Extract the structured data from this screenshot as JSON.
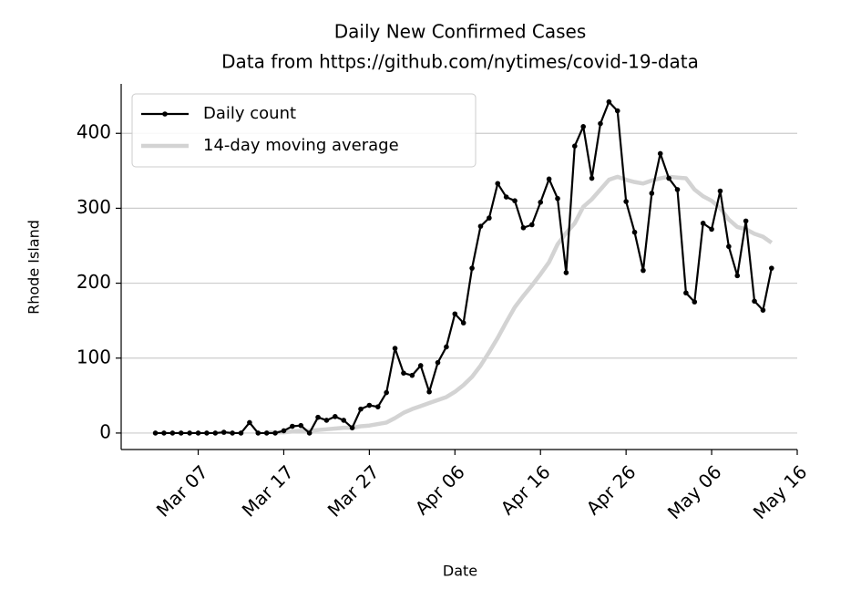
{
  "chart_data": {
    "type": "line",
    "title": "Daily New Confirmed Cases",
    "subtitle": "Data from https://github.com/nytimes/covid-19-data",
    "x_label": "Date",
    "y_label": "Rhode Island",
    "x": [
      "Mar 02",
      "Mar 03",
      "Mar 04",
      "Mar 05",
      "Mar 06",
      "Mar 07",
      "Mar 08",
      "Mar 09",
      "Mar 10",
      "Mar 11",
      "Mar 12",
      "Mar 13",
      "Mar 14",
      "Mar 15",
      "Mar 16",
      "Mar 17",
      "Mar 18",
      "Mar 19",
      "Mar 20",
      "Mar 21",
      "Mar 22",
      "Mar 23",
      "Mar 24",
      "Mar 25",
      "Mar 26",
      "Mar 27",
      "Mar 28",
      "Mar 29",
      "Mar 30",
      "Mar 31",
      "Apr 01",
      "Apr 02",
      "Apr 03",
      "Apr 04",
      "Apr 05",
      "Apr 06",
      "Apr 07",
      "Apr 08",
      "Apr 09",
      "Apr 10",
      "Apr 11",
      "Apr 12",
      "Apr 13",
      "Apr 14",
      "Apr 15",
      "Apr 16",
      "Apr 17",
      "Apr 18",
      "Apr 19",
      "Apr 20",
      "Apr 21",
      "Apr 22",
      "Apr 23",
      "Apr 24",
      "Apr 25",
      "Apr 26",
      "Apr 27",
      "Apr 28",
      "Apr 29",
      "Apr 30",
      "May 01",
      "May 02",
      "May 03",
      "May 04",
      "May 05",
      "May 06",
      "May 07",
      "May 08",
      "May 09",
      "May 10",
      "May 11",
      "May 12",
      "May 13"
    ],
    "series": [
      {
        "name": "Daily count",
        "color": "#000000",
        "markers": true,
        "line_width": 2.2,
        "values": [
          0,
          0,
          0,
          0,
          0,
          0,
          0,
          0,
          1,
          0,
          0,
          14,
          0,
          0,
          0,
          3,
          9,
          10,
          0,
          21,
          17,
          22,
          17,
          7,
          32,
          37,
          35,
          54,
          113,
          80,
          77,
          90,
          55,
          94,
          115,
          159,
          147,
          220,
          276,
          287,
          333,
          315,
          310,
          274,
          278,
          308,
          339,
          313,
          214,
          383,
          409,
          340,
          413,
          442,
          430,
          309,
          268,
          217,
          320,
          373,
          340,
          325,
          187,
          175,
          280,
          272,
          323,
          249,
          210,
          283,
          176,
          164,
          220
        ]
      },
      {
        "name": "14-day moving average",
        "color": "#d3d3d3",
        "markers": false,
        "line_width": 4.5,
        "values": [
          null,
          null,
          null,
          null,
          null,
          null,
          null,
          null,
          null,
          null,
          null,
          null,
          null,
          1,
          1,
          1,
          2,
          3,
          3,
          4,
          5,
          6,
          7,
          7,
          9,
          10,
          12,
          14,
          20,
          27,
          32,
          36,
          40,
          44,
          48,
          55,
          64,
          75,
          90,
          108,
          127,
          148,
          168,
          183,
          197,
          212,
          228,
          252,
          267,
          280,
          302,
          312,
          325,
          338,
          342,
          338,
          335,
          333,
          337,
          340,
          342,
          341,
          340,
          325,
          316,
          310,
          300,
          285,
          275,
          272,
          266,
          262,
          254
        ]
      }
    ],
    "xlim": [
      "Feb 27",
      "May 16"
    ],
    "xticks": [
      "Mar 07",
      "Mar 17",
      "Mar 27",
      "Apr 06",
      "Apr 16",
      "Apr 26",
      "May 06",
      "May 16"
    ],
    "ylim": [
      -22,
      466
    ],
    "yticks": [
      0,
      100,
      200,
      300,
      400
    ],
    "grid": true,
    "legend": "upper left"
  }
}
